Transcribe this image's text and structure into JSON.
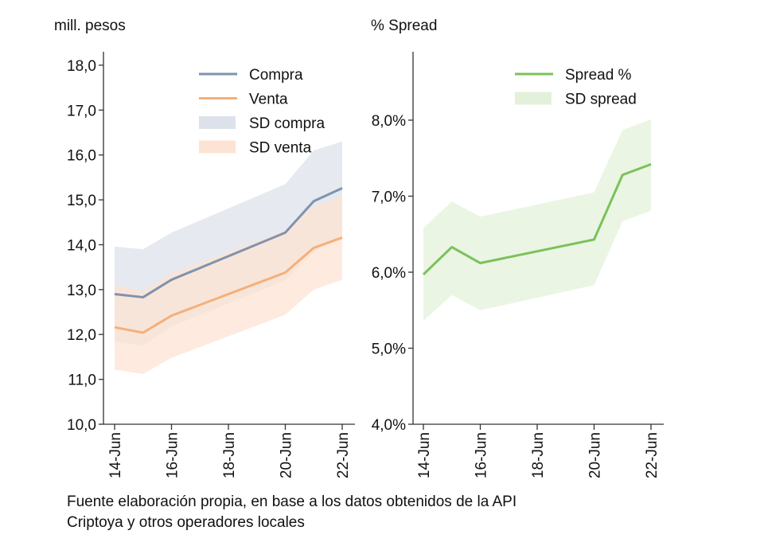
{
  "chart_data": [
    {
      "type": "line",
      "ylabel": "mill. pesos",
      "x": [
        "14-Jun",
        "15-Jun",
        "16-Jun",
        "20-Jun",
        "21-Jun",
        "22-Jun"
      ],
      "xticks": [
        "14-Jun",
        "16-Jun",
        "18-Jun",
        "20-Jun",
        "22-Jun"
      ],
      "yticks": [
        "10,0",
        "11,0",
        "12,0",
        "13,0",
        "14,0",
        "15,0",
        "16,0",
        "17,0",
        "18,0"
      ],
      "ylim": [
        10,
        18.3
      ],
      "grid": false,
      "legend": "top-right",
      "series": [
        {
          "name": "Compra",
          "kind": "line",
          "color": "#7f93ad",
          "values": [
            12.9,
            12.83,
            13.22,
            14.27,
            14.97,
            15.26
          ]
        },
        {
          "name": "Venta",
          "kind": "line",
          "color": "#f5b07a",
          "values": [
            12.16,
            12.04,
            12.42,
            13.38,
            13.93,
            14.16
          ]
        },
        {
          "name": "SD compra",
          "kind": "band",
          "color": "#dde2ea",
          "lower": [
            11.84,
            11.75,
            12.18,
            13.2,
            13.84,
            14.22
          ],
          "upper": [
            13.96,
            13.9,
            14.27,
            15.35,
            16.1,
            16.3
          ]
        },
        {
          "name": "SD venta",
          "kind": "band",
          "color": "#fde3d3",
          "lower": [
            11.22,
            11.12,
            11.48,
            12.44,
            13.0,
            13.22
          ],
          "upper": [
            13.1,
            12.96,
            13.36,
            14.32,
            14.86,
            15.1
          ]
        }
      ]
    },
    {
      "type": "line",
      "ylabel": "% Spread",
      "x": [
        "14-Jun",
        "15-Jun",
        "16-Jun",
        "20-Jun",
        "21-Jun",
        "22-Jun"
      ],
      "xticks": [
        "14-Jun",
        "16-Jun",
        "18-Jun",
        "20-Jun",
        "22-Jun"
      ],
      "yticks": [
        "4,0%",
        "5,0%",
        "6,0%",
        "7,0%",
        "8,0%"
      ],
      "ylim": [
        4,
        8.9
      ],
      "grid": false,
      "legend": "top-right",
      "series": [
        {
          "name": "Spread %",
          "kind": "line",
          "color": "#7cc15a",
          "values": [
            5.97,
            6.33,
            6.12,
            6.43,
            7.28,
            7.42
          ]
        },
        {
          "name": "SD spread",
          "kind": "band",
          "color": "#e3f1da",
          "lower": [
            5.36,
            5.7,
            5.5,
            5.83,
            6.67,
            6.81
          ],
          "upper": [
            6.58,
            6.93,
            6.73,
            7.05,
            7.87,
            8.01
          ]
        }
      ]
    }
  ],
  "note": {
    "line1": "Fuente elaboración propia, en base a los datos obtenidos de la API",
    "line2": "Criptoya y otros operadores locales"
  }
}
